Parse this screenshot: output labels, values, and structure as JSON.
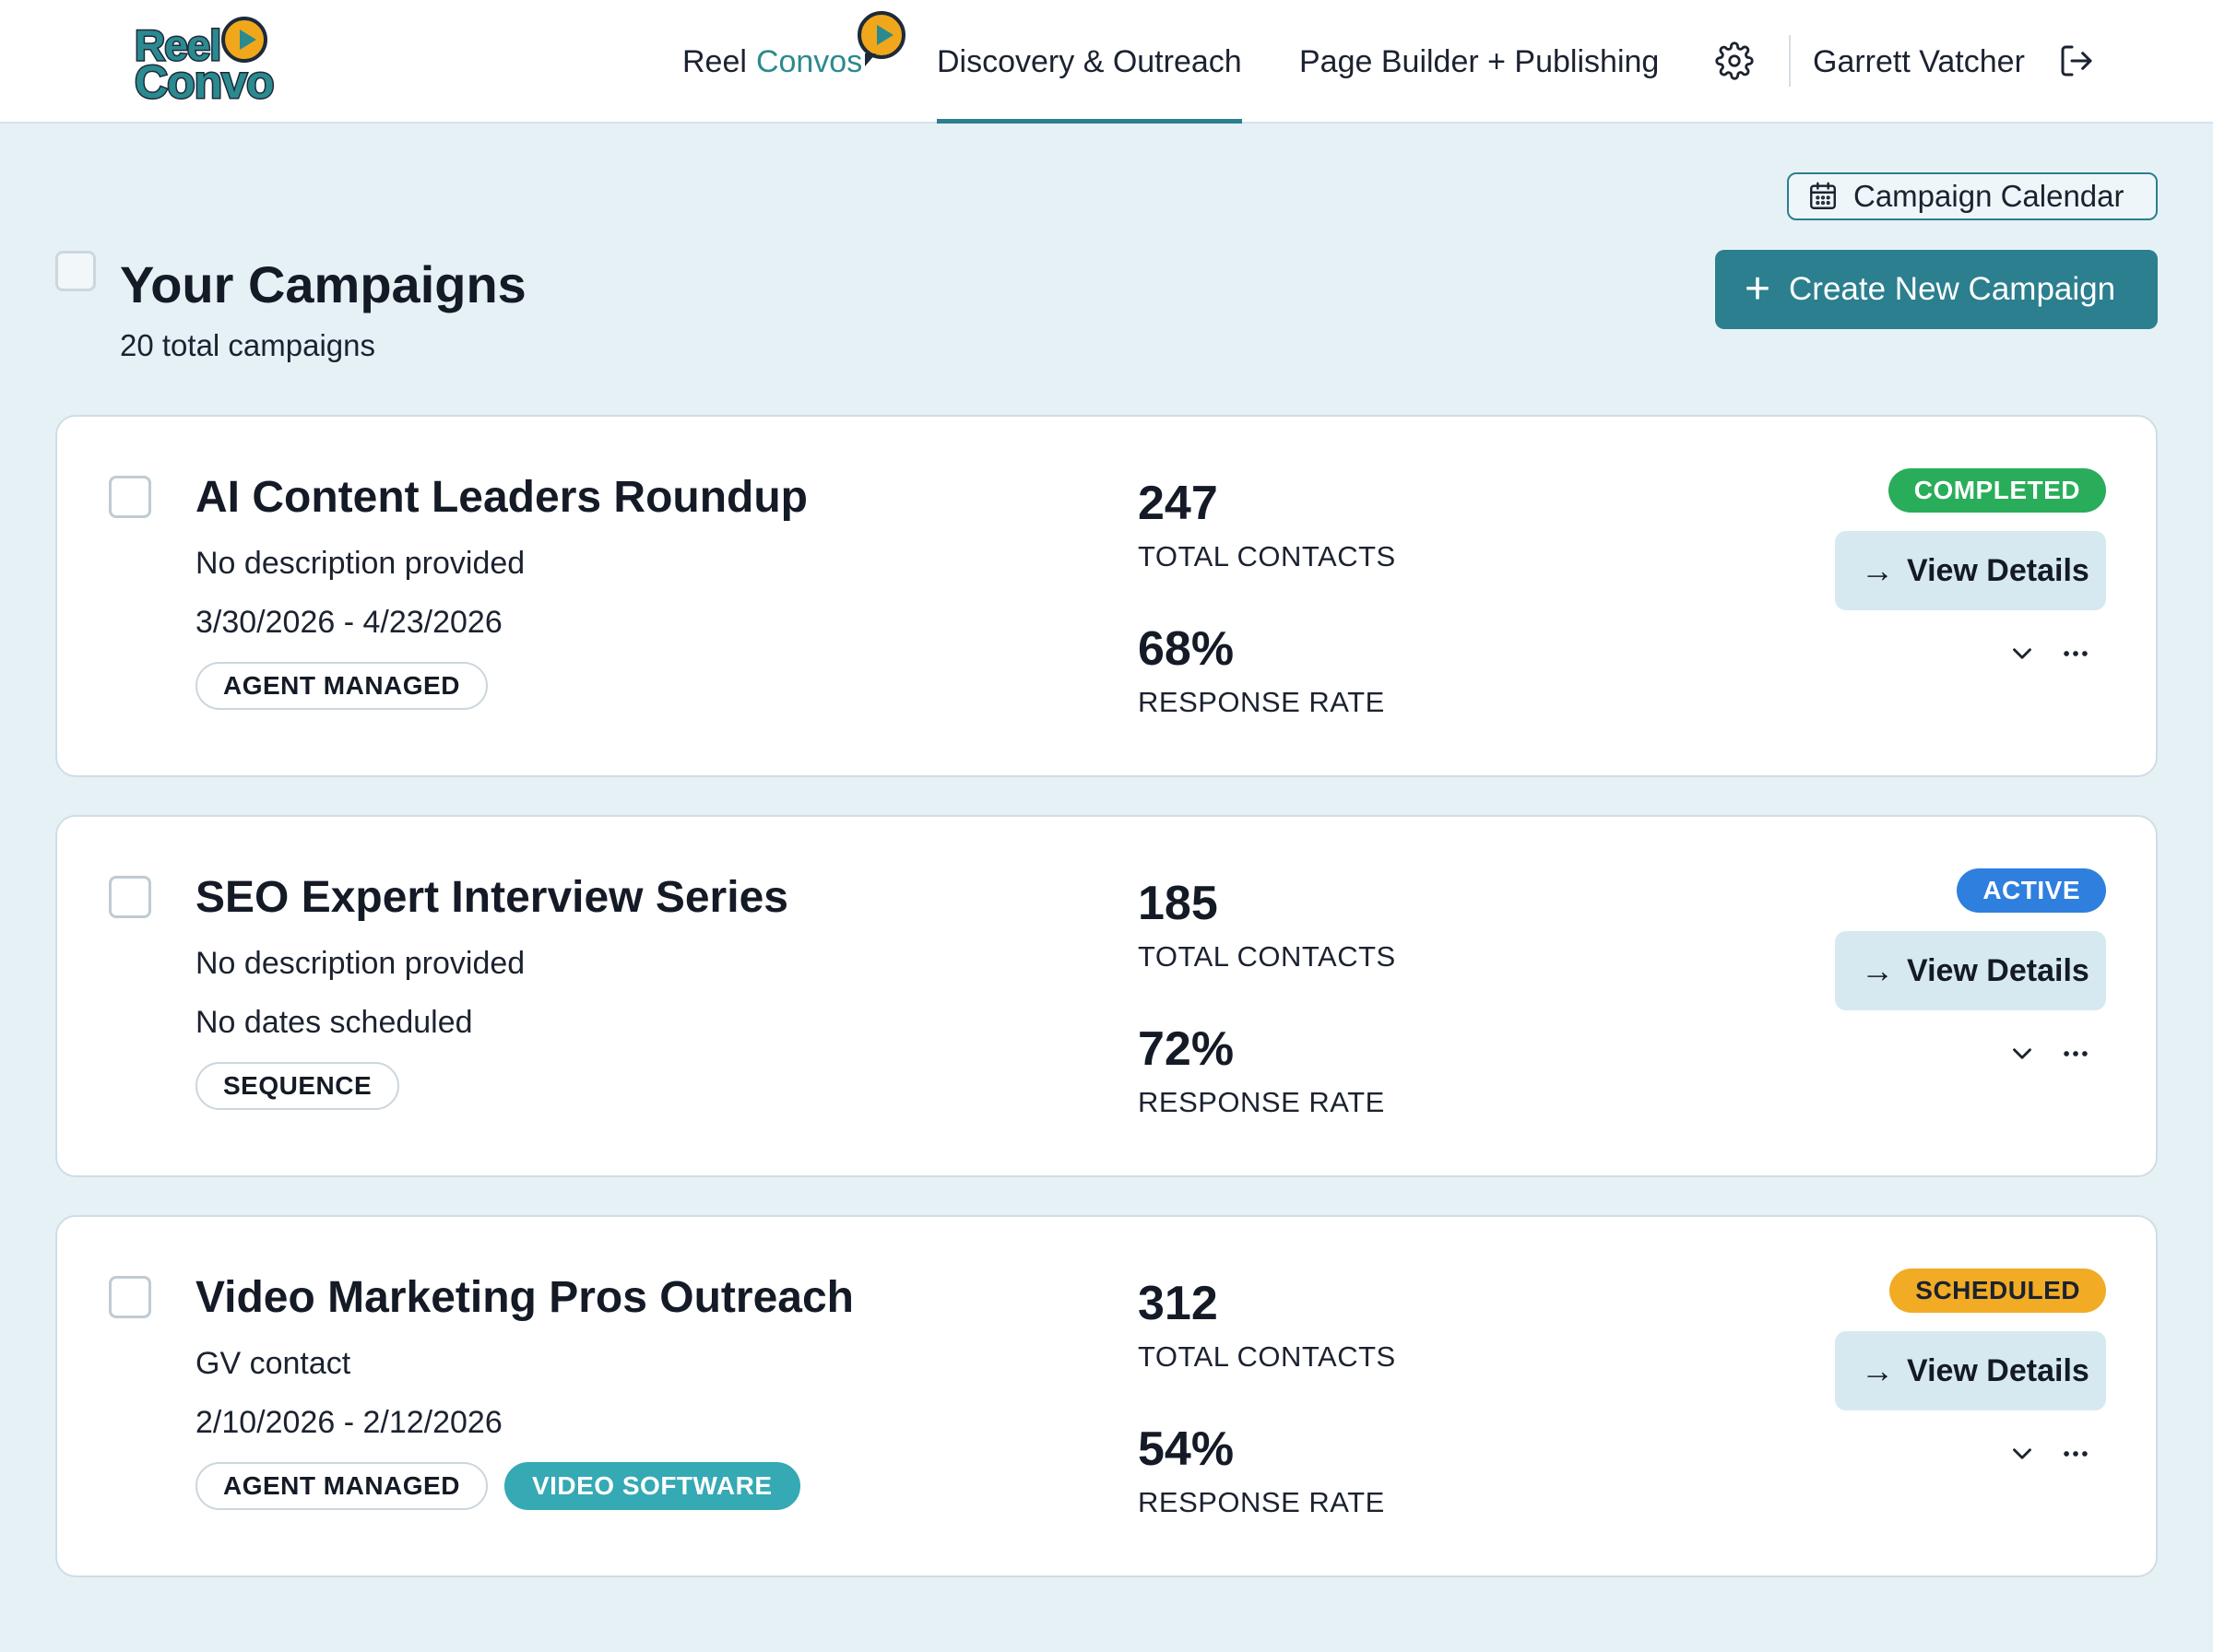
{
  "header": {
    "logo": {
      "line1": "Reel",
      "line2": "Convo",
      "icon": "play-bubble-icon"
    },
    "nav": {
      "reel_prefix": "Reel",
      "reel_accent": "Convos",
      "discovery": "Discovery & Outreach",
      "builder": "Page Builder + Publishing",
      "settings_icon": "gear-icon",
      "user_name": "Garrett Vatcher",
      "logout_icon": "logout-icon"
    },
    "active_tab": "discovery"
  },
  "toolbar": {
    "calendar_label": "Campaign Calendar",
    "create_label": "Create New Campaign"
  },
  "page": {
    "title": "Your Campaigns",
    "subtitle": "20 total campaigns"
  },
  "metric_labels": {
    "contacts": "TOTAL CONTACTS",
    "response": "RESPONSE RATE"
  },
  "view_label": "View Details",
  "campaigns": [
    {
      "title": "AI Content Leaders Roundup",
      "description": "No description provided",
      "dates": "3/30/2026 - 4/23/2026",
      "tags": [
        "AGENT MANAGED"
      ],
      "contacts": "247",
      "response_rate": "68%",
      "status": "COMPLETED"
    },
    {
      "title": "SEO Expert Interview Series",
      "description": "No description provided",
      "dates": "No dates scheduled",
      "tags": [
        "SEQUENCE"
      ],
      "contacts": "185",
      "response_rate": "72%",
      "status": "ACTIVE"
    },
    {
      "title": "Video Marketing Pros Outreach",
      "description": "GV contact",
      "dates": "2/10/2026 - 2/12/2026",
      "tags": [
        "AGENT MANAGED",
        "VIDEO SOFTWARE"
      ],
      "contacts": "312",
      "response_rate": "54%",
      "status": "SCHEDULED"
    }
  ],
  "colors": {
    "brand_teal": "#2b7f8e",
    "completed": "#2aad5a",
    "active": "#2f7fde",
    "scheduled": "#f1ab24",
    "tag_teal": "#35a9b4"
  }
}
